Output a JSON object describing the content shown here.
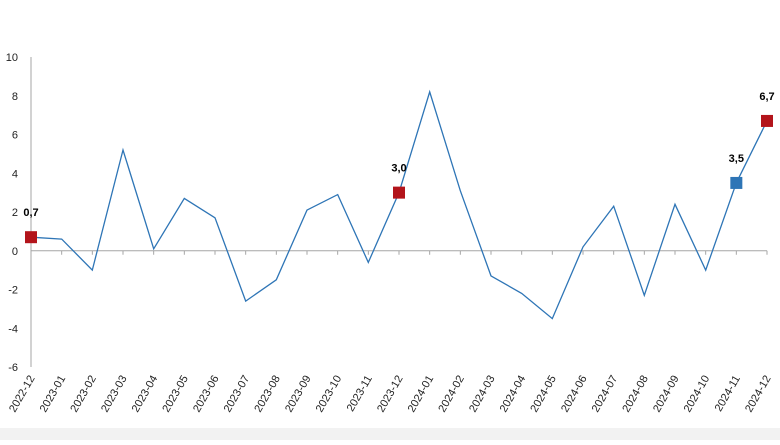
{
  "chart_data": {
    "type": "line",
    "title": "",
    "xlabel": "",
    "ylabel": "",
    "ylim": [
      -6,
      10
    ],
    "yticks": [
      10,
      8,
      6,
      4,
      2,
      0,
      -2,
      -4,
      -6
    ],
    "grid": false,
    "colors": {
      "line": "#2e75b6",
      "axis": "#a6a6a6",
      "marker_red": "#b3141b",
      "marker_blue": "#2e75b6",
      "label": "#000000"
    },
    "categories": [
      "2022-12",
      "2023-01",
      "2023-02",
      "2023-03",
      "2023-04",
      "2023-05",
      "2023-06",
      "2023-07",
      "2023-08",
      "2023-09",
      "2023-10",
      "2023-11",
      "2023-12",
      "2024-01",
      "2024-02",
      "2024-03",
      "2024-04",
      "2024-05",
      "2024-06",
      "2024-07",
      "2024-08",
      "2024-09",
      "2024-10",
      "2024-11",
      "2024-12"
    ],
    "series": [
      {
        "values": [
          0.7,
          0.6,
          -1.0,
          5.2,
          0.1,
          2.7,
          1.7,
          -2.6,
          -1.5,
          2.1,
          2.9,
          -0.6,
          3.0,
          8.2,
          3.1,
          -1.3,
          -2.2,
          -3.5,
          0.2,
          2.3,
          -2.3,
          2.4,
          -1.0,
          3.5,
          6.7
        ]
      }
    ],
    "highlights": [
      {
        "index": 0,
        "label": "0,7",
        "color": "red"
      },
      {
        "index": 12,
        "label": "3,0",
        "color": "red"
      },
      {
        "index": 23,
        "label": "3,5",
        "color": "blue"
      },
      {
        "index": 24,
        "label": "6,7",
        "color": "red"
      }
    ]
  }
}
